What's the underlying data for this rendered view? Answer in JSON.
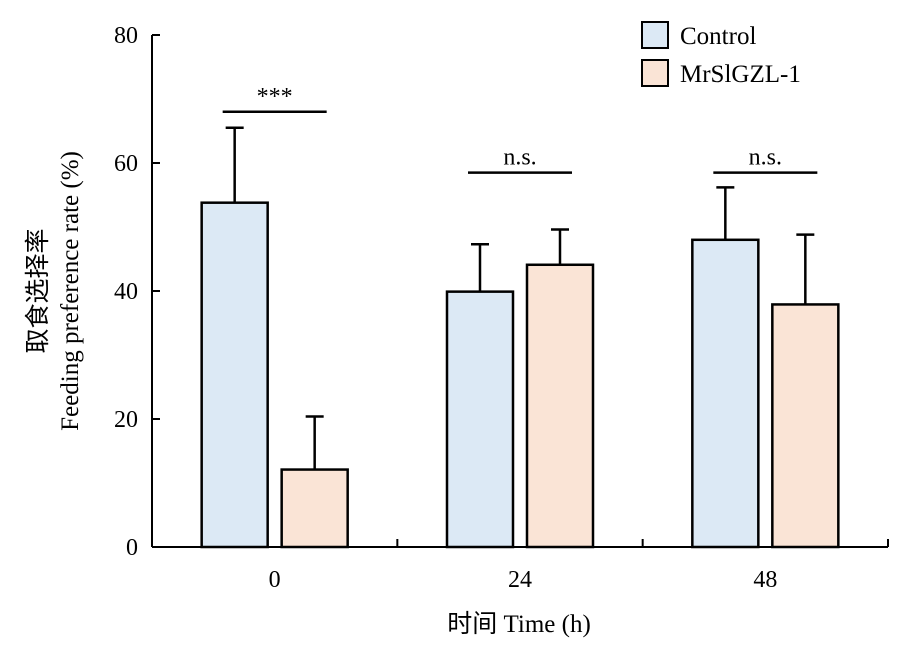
{
  "chart_data": {
    "type": "bar",
    "categories": [
      "0",
      "24",
      "48"
    ],
    "series": [
      {
        "name": "Control",
        "color": "#dce9f5",
        "values": [
          53.8,
          39.9,
          48.0
        ],
        "errors": [
          11.7,
          7.4,
          8.2
        ]
      },
      {
        "name": "MrSlGZL-1",
        "color": "#fae4d6",
        "values": [
          12.1,
          44.1,
          37.9
        ],
        "errors": [
          8.3,
          5.5,
          10.9
        ]
      }
    ],
    "significance": [
      {
        "category": "0",
        "label": "***",
        "y": 68
      },
      {
        "category": "24",
        "label": "n.s.",
        "y": 58.5
      },
      {
        "category": "48",
        "label": "n.s.",
        "y": 58.5
      }
    ],
    "ylabel_cn": "取食选择率",
    "ylabel": "Feeding preference rate (%)",
    "xlabel": "时间 Time (h)",
    "ylim": [
      0,
      80
    ],
    "yticks": [
      0,
      20,
      40,
      60,
      80
    ],
    "legend_position": "top-right",
    "grid": false,
    "bar_edge_color": "#000000"
  }
}
